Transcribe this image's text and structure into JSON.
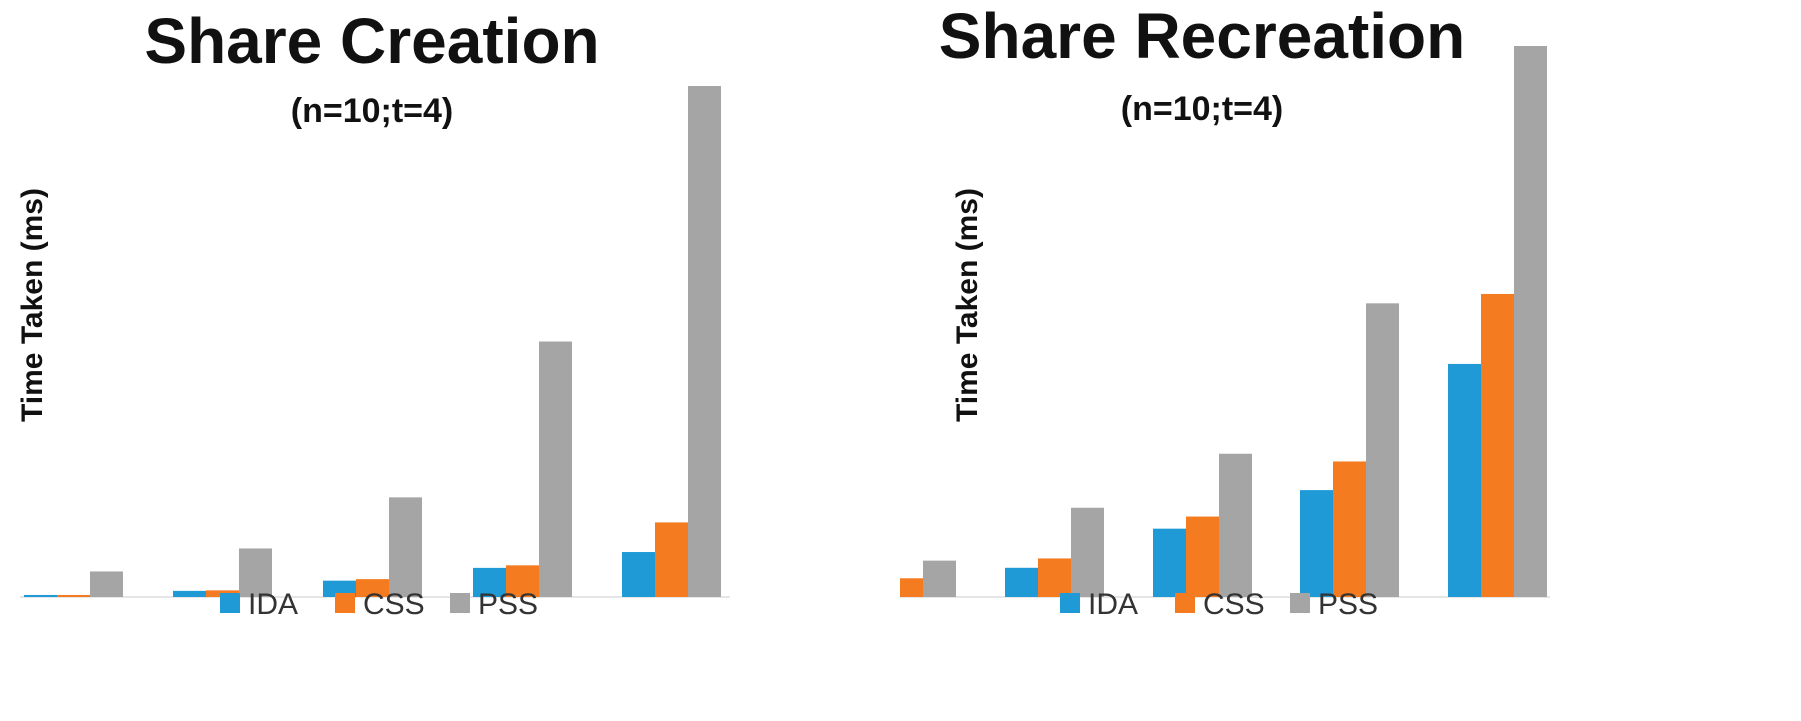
{
  "colors": {
    "IDA": "#1f9ad6",
    "CSS": "#f47b20",
    "PSS": "#a5a5a5",
    "text": "#111111",
    "axis": "#cccccc"
  },
  "chart_data": [
    {
      "type": "bar",
      "title": "Share Creation",
      "subtitle": "(n=10;t=4)",
      "xlabel": "",
      "ylabel": "Time Taken (ms)",
      "categories": [
        "",
        "",
        "",
        "",
        ""
      ],
      "ylim": [
        0,
        100
      ],
      "grid": false,
      "legend": "bottom",
      "series": [
        {
          "name": "IDA",
          "values": [
            0.4,
            1.2,
            3.2,
            5.7,
            8.8
          ]
        },
        {
          "name": "CSS",
          "values": [
            0.4,
            1.3,
            3.5,
            6.2,
            14.6
          ]
        },
        {
          "name": "PSS",
          "values": [
            5.0,
            9.5,
            19.5,
            50.0,
            100
          ]
        }
      ]
    },
    {
      "type": "bar",
      "title": "Share Recreation",
      "subtitle": "(n=10;t=4)",
      "xlabel": "",
      "ylabel": "Time Taken (ms)",
      "categories": [
        "",
        "",
        "",
        "",
        ""
      ],
      "ylim": [
        0,
        100
      ],
      "grid": false,
      "legend": "bottom",
      "series": [
        {
          "name": "IDA",
          "values": [
            2.5,
            5.3,
            12.4,
            19.4,
            42.3
          ]
        },
        {
          "name": "CSS",
          "values": [
            3.4,
            7.0,
            14.6,
            24.6,
            55.0
          ]
        },
        {
          "name": "PSS",
          "values": [
            6.6,
            16.2,
            26.0,
            53.3,
            100
          ]
        }
      ]
    }
  ]
}
